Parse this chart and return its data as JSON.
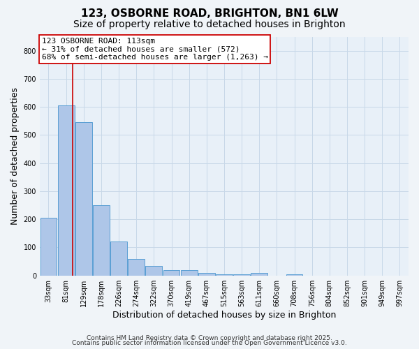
{
  "title_line1": "123, OSBORNE ROAD, BRIGHTON, BN1 6LW",
  "title_line2": "Size of property relative to detached houses in Brighton",
  "xlabel": "Distribution of detached houses by size in Brighton",
  "ylabel": "Number of detached properties",
  "categories": [
    "33sqm",
    "81sqm",
    "129sqm",
    "178sqm",
    "226sqm",
    "274sqm",
    "322sqm",
    "370sqm",
    "419sqm",
    "467sqm",
    "515sqm",
    "563sqm",
    "611sqm",
    "660sqm",
    "708sqm",
    "756sqm",
    "804sqm",
    "852sqm",
    "901sqm",
    "949sqm",
    "997sqm"
  ],
  "bar_values": [
    205,
    605,
    545,
    250,
    120,
    60,
    35,
    18,
    18,
    10,
    5,
    5,
    10,
    0,
    5,
    0,
    0,
    0,
    0,
    0,
    0
  ],
  "bar_color": "#aec6e8",
  "bar_edge_color": "#5a9fd4",
  "vline_x_index": 1.39,
  "vline_color": "#cc0000",
  "annotation_line1": "123 OSBORNE ROAD: 113sqm",
  "annotation_line2": "← 31% of detached houses are smaller (572)",
  "annotation_line3": "68% of semi-detached houses are larger (1,263) →",
  "annotation_box_color": "#cc0000",
  "annotation_bg_color": "#ffffff",
  "ylim": [
    0,
    850
  ],
  "yticks": [
    0,
    100,
    200,
    300,
    400,
    500,
    600,
    700,
    800
  ],
  "grid_color": "#c8d8e8",
  "bg_color": "#e8f0f8",
  "fig_bg_color": "#f0f4f8",
  "footer_line1": "Contains HM Land Registry data © Crown copyright and database right 2025.",
  "footer_line2": "Contains public sector information licensed under the Open Government Licence v3.0.",
  "title_fontsize": 11,
  "subtitle_fontsize": 10,
  "tick_fontsize": 7,
  "ylabel_fontsize": 9,
  "xlabel_fontsize": 9,
  "annotation_fontsize": 8,
  "footer_fontsize": 6.5
}
